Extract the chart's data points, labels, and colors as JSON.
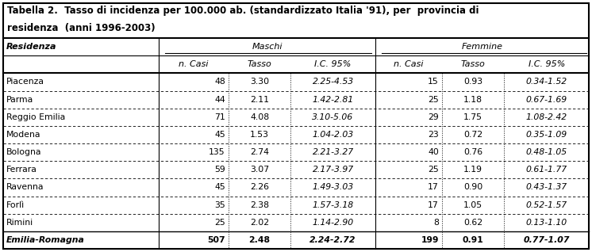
{
  "title_line1": "Tabella 2.  Tasso di incidenza per 100.000 ab. (standardizzato Italia '91), per  provincia di",
  "title_line2": "residenza  (anni 1996-2003)",
  "col_group_headers": [
    "Maschi",
    "Femmine"
  ],
  "col_sub_headers": [
    "n. Casi",
    "Tasso",
    "I.C. 95%",
    "n. Casi",
    "Tasso",
    "I.C. 95%"
  ],
  "row_header": "Residenza",
  "rows": [
    [
      "Piacenza",
      "48",
      "3.30",
      "2.25-4.53",
      "15",
      "0.93",
      "0.34-1.52"
    ],
    [
      "Parma",
      "44",
      "2.11",
      "1.42-2.81",
      "25",
      "1.18",
      "0.67-1.69"
    ],
    [
      "Reggio Emilia",
      "71",
      "4.08",
      "3.10-5.06",
      "29",
      "1.75",
      "1.08-2.42"
    ],
    [
      "Modena",
      "45",
      "1.53",
      "1.04-2.03",
      "23",
      "0.72",
      "0.35-1.09"
    ],
    [
      "Bologna",
      "135",
      "2.74",
      "2.21-3.27",
      "40",
      "0.76",
      "0.48-1.05"
    ],
    [
      "Ferrara",
      "59",
      "3.07",
      "2.17-3.97",
      "25",
      "1.19",
      "0.61-1.77"
    ],
    [
      "Ravenna",
      "45",
      "2.26",
      "1.49-3.03",
      "17",
      "0.90",
      "0.43-1.37"
    ],
    [
      "Forlì",
      "35",
      "2.38",
      "1.57-3.18",
      "17",
      "1.05",
      "0.52-1.57"
    ],
    [
      "Rimini",
      "25",
      "2.02",
      "1.14-2.90",
      "8",
      "0.62",
      "0.13-1.10"
    ]
  ],
  "footer_row": [
    "Emilia-Romagna",
    "507",
    "2.48",
    "2.24-2.72",
    "199",
    "0.91",
    "0.77-1.07"
  ],
  "background_color": "#ffffff",
  "figwidth": 7.46,
  "figheight": 3.18,
  "dpi": 100
}
